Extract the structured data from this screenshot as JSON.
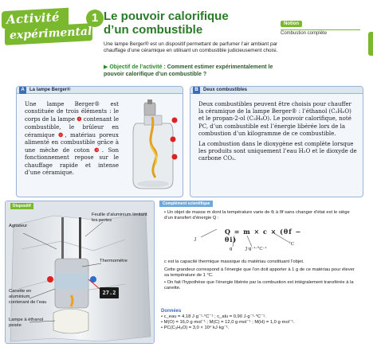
{
  "header": {
    "ribbon_line1": "Activité",
    "ribbon_line2": "expérimentale",
    "number": "1",
    "title_line1": "Le pouvoir calorifique",
    "title_line2": "d’un combustible",
    "notion_tag": "Notion",
    "notion_value": "Combustion complète",
    "intro": "Une lampe Berger® est un dispositif permettant de parfumer l’air ambiant par chauffage d’une céramique en utilisant un combustible judicieusement choisi.",
    "objective_label": "▶ Objectif de l’activité :",
    "objective_text": " Comment estimer expérimentalement le pouvoir calorifique d’un combustible ?"
  },
  "sectionA": {
    "letter": "A",
    "title": "La lampe Berger®",
    "text_part1": "Une lampe Berger® est constituée de trois éléments : le corps de la lampe ",
    "mark1": "❶",
    "text_part2": " contenant le combustible, le brûleur en céramique ",
    "mark2": "❷",
    "text_part3": ", matériau poreux alimenté en combustible grâce à une mèche de coton ",
    "mark3": "❸",
    "text_part4": ". Son fonctionnement repose sur le chauffage rapide et intense d’une céramique."
  },
  "sectionB": {
    "letter": "B",
    "title": "Deux combustibles",
    "para1": "Deux combustibles peuvent être choisis pour chauffer la céramique de la lampe Berger® : l’éthanol (C₂H₆O) et le propan-2-ol (C₃H₈O). Le pouvoir calorifique, noté PC, d’un combustible est l’énergie libérée lors de la combustion d’un kilogramme de ce combustible.",
    "para2": "La combustion dans le dioxygène est complète lorsque les produits sont uniquement l’eau H₂O et le dioxyde de carbone CO₂."
  },
  "dispositif": {
    "tag": "Dispositif",
    "label_agitateur": "Agitateur",
    "label_alu": "Feuille d’aluminium limitant les pertes",
    "label_thermo": "Thermomètre",
    "label_canette": "Canette en aluminium contenant de l’eau",
    "label_lampe": "Lampe à éthanol pesée",
    "display": "27.2"
  },
  "complement": {
    "tag": "Complément scientifique",
    "line1": "• Un objet de masse m dont la température varie de θᵢ à θf sans changer d’état est le siège d’un transfert d’énergie Q :",
    "equation": "Q = m × c × (θf − θi)",
    "lbl_J": "J",
    "lbl_g": "g",
    "lbl_jg": "J·g⁻¹·°C⁻¹",
    "lbl_c": "°C",
    "line2": "c est la capacité thermique massique du matériau constituant l’objet.",
    "line3": "Cette grandeur correspond à l’énergie que l’on doit apporter à 1 g de ce matériau pour élever sa température de 1 °C.",
    "line4": "• On fait l’hypothèse que l’énergie libérée par la combustion est intégralement transférée à la canette."
  },
  "donnees": {
    "title": "Données",
    "line1": "• c_eau = 4,18 J·g⁻¹·°C⁻¹ ; c_alu = 0,90 J·g⁻¹·°C⁻¹.",
    "line2": "• M(O) = 16,0 g·mol⁻¹ ; M(C) = 12,0 g·mol⁻¹ ; M(H) = 1,0 g·mol⁻¹.",
    "line3": "• PC(C₃H₈O) = 3,0 × 10⁴ kJ·kg⁻¹."
  }
}
